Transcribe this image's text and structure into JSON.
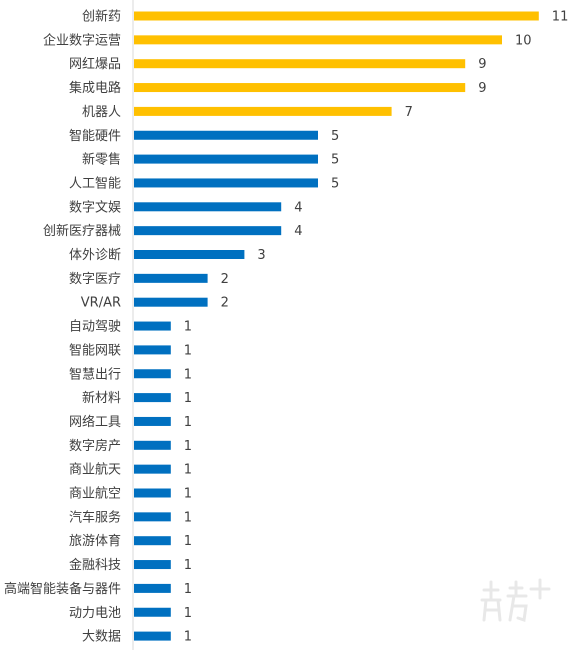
{
  "chart_data": {
    "type": "bar",
    "orientation": "horizontal",
    "categories": [
      "创新药",
      "企业数字运营",
      "网红爆品",
      "集成电路",
      "机器人",
      "智能硬件",
      "新零售",
      "人工智能",
      "数字文娱",
      "创新医疗器械",
      "体外诊断",
      "数字医疗",
      "VR/AR",
      "自动驾驶",
      "智能网联",
      "智慧出行",
      "新材料",
      "网络工具",
      "数字房产",
      "商业航天",
      "商业航空",
      "汽车服务",
      "旅游体育",
      "金融科技",
      "高端智能装备与器件",
      "动力电池",
      "大数据"
    ],
    "values": [
      11,
      10,
      9,
      9,
      7,
      5,
      5,
      5,
      4,
      4,
      3,
      2,
      2,
      1,
      1,
      1,
      1,
      1,
      1,
      1,
      1,
      1,
      1,
      1,
      1,
      1,
      1
    ],
    "highlight_count": 5,
    "colors": {
      "highlight": "#FFC000",
      "normal": "#0070C0",
      "axis": "#D9D9D9",
      "text": "#404040"
    },
    "xlim": [
      0,
      11
    ],
    "title": "",
    "xlabel": "",
    "ylabel": "",
    "grid": false,
    "legend": "none"
  },
  "watermark": {
    "text": "南方+"
  }
}
